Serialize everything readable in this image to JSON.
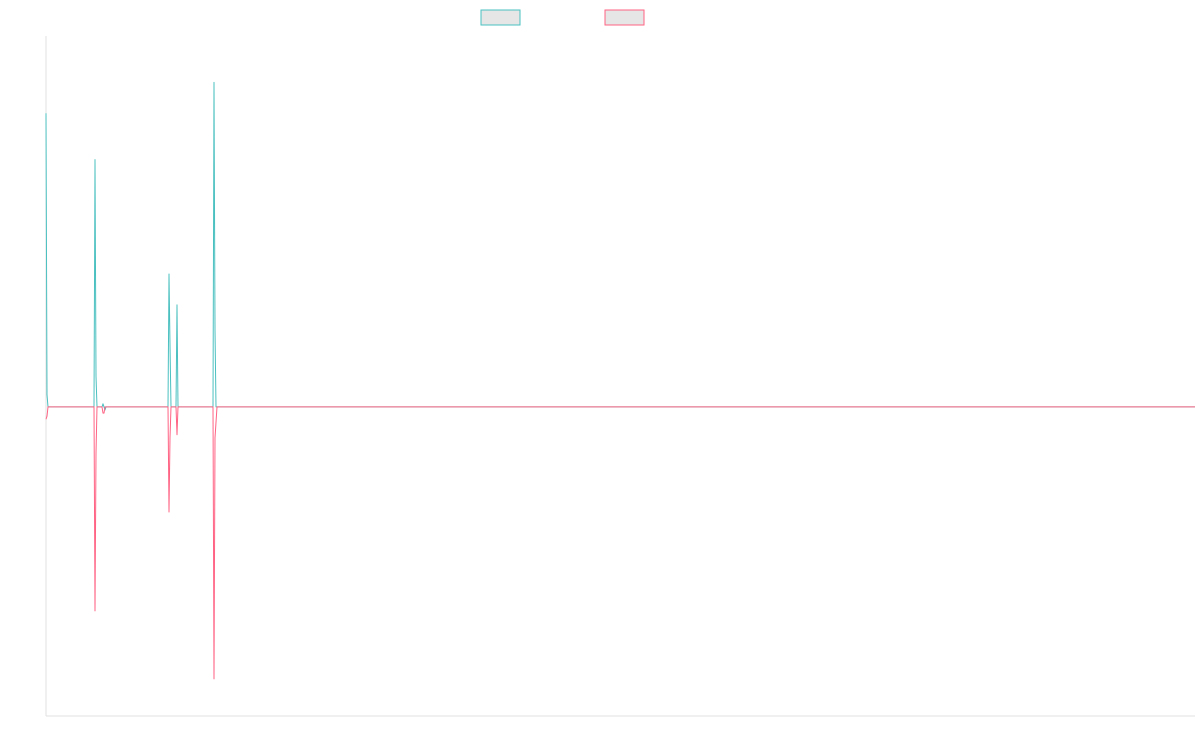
{
  "chart_data": {
    "type": "line",
    "title": "",
    "xlabel": "",
    "ylabel": "",
    "ylim": [
      -100,
      120
    ],
    "legend_position": "top-center",
    "grid": false,
    "x": [
      0,
      1,
      2,
      3,
      4,
      5,
      6,
      7,
      8,
      9,
      10,
      11,
      12,
      13,
      14,
      15,
      16,
      17,
      18,
      19,
      20,
      21,
      22,
      23,
      24,
      25,
      26,
      27,
      28,
      29,
      30,
      31,
      32,
      33,
      34,
      35,
      36,
      37,
      38,
      39,
      40,
      41,
      42,
      43,
      44,
      45,
      46,
      47,
      48,
      49,
      50,
      51,
      52,
      53,
      54,
      55,
      56,
      57,
      58,
      59,
      60,
      61,
      62,
      63,
      64,
      65,
      66,
      67,
      68,
      69,
      70,
      71,
      72,
      73,
      74,
      75,
      76,
      77,
      78,
      79,
      80,
      81,
      82,
      83,
      84,
      85,
      86,
      87,
      88,
      89,
      90,
      91,
      92,
      93,
      94,
      95,
      96,
      97,
      98,
      99,
      100,
      101,
      102,
      103,
      104,
      105,
      106,
      107,
      108,
      109,
      110,
      111,
      112,
      113,
      114,
      115,
      116,
      117,
      118,
      119,
      120,
      121,
      122,
      123,
      124,
      125,
      126,
      127,
      128,
      129,
      130,
      131,
      132,
      133,
      134,
      135,
      136,
      137,
      138,
      139,
      140,
      141,
      142,
      143,
      144,
      145,
      146,
      147,
      148,
      149,
      150,
      151,
      152,
      153,
      154,
      155,
      156,
      157,
      158,
      159,
      160,
      161,
      162,
      163,
      164,
      165,
      166,
      167,
      168,
      169,
      170,
      171,
      172,
      173,
      174,
      175,
      176,
      177,
      178,
      179,
      180,
      181,
      182,
      183,
      184,
      185,
      186,
      187,
      188,
      189,
      190,
      191,
      192,
      193,
      194,
      195,
      196,
      197,
      198,
      199,
      200,
      201,
      202,
      203,
      204,
      205,
      206,
      207,
      208,
      209,
      210,
      211,
      212,
      213,
      214,
      215,
      216,
      217,
      218,
      219,
      220,
      221,
      222,
      223,
      224,
      225,
      226,
      227,
      228,
      229,
      230,
      231,
      232,
      233,
      234,
      235,
      236,
      237,
      238,
      239,
      240,
      241,
      242,
      243,
      244,
      245,
      246,
      247,
      248,
      249,
      250,
      251,
      252,
      253,
      254,
      255,
      256,
      257,
      258,
      259,
      260,
      261,
      262,
      263,
      264,
      265,
      266,
      267,
      268,
      269,
      270,
      271,
      272,
      273,
      274,
      275,
      276,
      277,
      278,
      279,
      280,
      281,
      282,
      283,
      284,
      285,
      286,
      287,
      288,
      289,
      290,
      291,
      292,
      293,
      294,
      295,
      296,
      297,
      298,
      299,
      300,
      301,
      302,
      303,
      304,
      305,
      306,
      307,
      308,
      309,
      310,
      311,
      312,
      313,
      314,
      315,
      316,
      317,
      318,
      319,
      320,
      321,
      322,
      323,
      324,
      325,
      326,
      327,
      328,
      329,
      330,
      331,
      332,
      333,
      334,
      335,
      336,
      337,
      338,
      339,
      340,
      341,
      342,
      343,
      344,
      345,
      346,
      347,
      348,
      349,
      350,
      351,
      352,
      353,
      354,
      355,
      356,
      357,
      358,
      359,
      360,
      361,
      362,
      363,
      364,
      365,
      366,
      367,
      368,
      369,
      370,
      371,
      372,
      373,
      374,
      375,
      376,
      377,
      378,
      379,
      380,
      381,
      382,
      383,
      384,
      385,
      386,
      387,
      388,
      389,
      390,
      391,
      392,
      393,
      394,
      395,
      396,
      397,
      398,
      399,
      400,
      401,
      402,
      403,
      404,
      405,
      406,
      407,
      408,
      409,
      410,
      411,
      412,
      413,
      414,
      415,
      416,
      417,
      418,
      419,
      420,
      421,
      422,
      423,
      424,
      425,
      426,
      427,
      428,
      429,
      430,
      431,
      432,
      433,
      434,
      435,
      436,
      437,
      438,
      439,
      440,
      441,
      442,
      443,
      444,
      445,
      446,
      447,
      448,
      449,
      450,
      451,
      452,
      453,
      454,
      455,
      456,
      457,
      458,
      459,
      460,
      461,
      462,
      463,
      464,
      465,
      466,
      467,
      468,
      469,
      470,
      471,
      472,
      473,
      474,
      475,
      476,
      477,
      478,
      479,
      480,
      481,
      482,
      483,
      484,
      485,
      486,
      487,
      488,
      489,
      490,
      491,
      492,
      493,
      494,
      495,
      496,
      497,
      498,
      499,
      500,
      501,
      502,
      503,
      504,
      505,
      506,
      507,
      508,
      509,
      510,
      511,
      512,
      513,
      514,
      515,
      516,
      517,
      518,
      519,
      520,
      521,
      522,
      523,
      524,
      525,
      526,
      527,
      528,
      529,
      530,
      531,
      532,
      533,
      534,
      535,
      536,
      537,
      538,
      539,
      540,
      541,
      542,
      543,
      544,
      545,
      546,
      547,
      548,
      549,
      550,
      551,
      552,
      553,
      554,
      555,
      556,
      557,
      558,
      559,
      560,
      561,
      562,
      563,
      564,
      565,
      566,
      567,
      568,
      569,
      570,
      571,
      572,
      573,
      574,
      575,
      576,
      577,
      578,
      579,
      580,
      581,
      582,
      583,
      584,
      585,
      586,
      587,
      588,
      589,
      590,
      591,
      592,
      593,
      594,
      595,
      596,
      597,
      598,
      599,
      600,
      601,
      602,
      603,
      604,
      605,
      606,
      607,
      608,
      609,
      610,
      611,
      612,
      613,
      614,
      615,
      616,
      617,
      618,
      619,
      620,
      621,
      622,
      623,
      624,
      625,
      626,
      627,
      628,
      629,
      630,
      631,
      632,
      633,
      634,
      635,
      636,
      637,
      638,
      639,
      640,
      641,
      642,
      643,
      644,
      645,
      646,
      647,
      648,
      649,
      650,
      651,
      652,
      653,
      654,
      655,
      656,
      657,
      658,
      659,
      660,
      661,
      662,
      663,
      664,
      665,
      666,
      667,
      668,
      669,
      670,
      671,
      672,
      673,
      674,
      675,
      676,
      677,
      678,
      679,
      680,
      681,
      682,
      683,
      684,
      685,
      686,
      687,
      688,
      689,
      690,
      691,
      692,
      693,
      694,
      695,
      696,
      697,
      698,
      699,
      700,
      701,
      702,
      703,
      704,
      705,
      706,
      707,
      708,
      709,
      710,
      711,
      712,
      713,
      714,
      715,
      716,
      717,
      718,
      719,
      720,
      721,
      722,
      723,
      724,
      725,
      726,
      727,
      728,
      729,
      730,
      731,
      732,
      733,
      734,
      735,
      736,
      737,
      738,
      739,
      740,
      741,
      742,
      743,
      744,
      745,
      746,
      747,
      748,
      749,
      750,
      751,
      752,
      753,
      754,
      755,
      756,
      757,
      758,
      759,
      760,
      761,
      762,
      763,
      764,
      765,
      766,
      767,
      768,
      769,
      770,
      771,
      772,
      773,
      774,
      775,
      776,
      777,
      778,
      779,
      780,
      781,
      782,
      783,
      784,
      785,
      786,
      787,
      788,
      789,
      790,
      791,
      792,
      793,
      794,
      795,
      796,
      797,
      798,
      799,
      800,
      801,
      802,
      803,
      804,
      805,
      806,
      807,
      808,
      809,
      810,
      811,
      812,
      813,
      814,
      815,
      816,
      817,
      818,
      819,
      820,
      821,
      822,
      823,
      824,
      825,
      826,
      827,
      828,
      829,
      830,
      831,
      832,
      833,
      834,
      835,
      836,
      837,
      838,
      839,
      840,
      841,
      842,
      843,
      844,
      845,
      846,
      847,
      848,
      849,
      850,
      851,
      852,
      853,
      854,
      855,
      856,
      857,
      858,
      859,
      860,
      861,
      862,
      863,
      864,
      865,
      866,
      867,
      868,
      869,
      870,
      871,
      872,
      873,
      874,
      875,
      876,
      877,
      878,
      879,
      880,
      881,
      882,
      883,
      884,
      885,
      886,
      887,
      888,
      889,
      890,
      891,
      892,
      893,
      894,
      895,
      896,
      897,
      898,
      899,
      900,
      901,
      902,
      903,
      904,
      905,
      906,
      907,
      908,
      909,
      910,
      911,
      912,
      913,
      914,
      915,
      916,
      917,
      918,
      919,
      920,
      921,
      922,
      923,
      924,
      925,
      926,
      927,
      928,
      929,
      930,
      931,
      932,
      933,
      934,
      935,
      936,
      937,
      938,
      939,
      940,
      941,
      942,
      943,
      944,
      945,
      946,
      947,
      948,
      949,
      950,
      951,
      952,
      953,
      954,
      955,
      956,
      957,
      958,
      959,
      960,
      961,
      962,
      963,
      964,
      965,
      966,
      967,
      968,
      969,
      970,
      971,
      972,
      973,
      974,
      975,
      976,
      977,
      978,
      979,
      980,
      981,
      982,
      983,
      984,
      985,
      986,
      987,
      988,
      989,
      990,
      991,
      992,
      993,
      994,
      995,
      996,
      997,
      998,
      999,
      1000,
      1001,
      1002,
      1003,
      1004,
      1005,
      1006,
      1007,
      1008,
      1009,
      1010,
      1011,
      1012,
      1013,
      1014,
      1015,
      1016,
      1017,
      1018,
      1019,
      1020,
      1021,
      1022,
      1023,
      1024,
      1025,
      1026,
      1027,
      1028,
      1029,
      1030,
      1031,
      1032,
      1033,
      1034,
      1035,
      1036,
      1037,
      1038,
      1039,
      1040,
      1041,
      1042,
      1043,
      1044,
      1045,
      1046,
      1047,
      1048,
      1049,
      1050,
      1051,
      1052,
      1053,
      1054,
      1055,
      1056,
      1057,
      1058,
      1059,
      1060,
      1061,
      1062,
      1063,
      1064,
      1065,
      1066,
      1067,
      1068,
      1069,
      1070,
      1071,
      1072,
      1073,
      1074,
      1075,
      1076,
      1077,
      1078,
      1079,
      1080,
      1081,
      1082,
      1083,
      1084,
      1085,
      1086,
      1087,
      1088,
      1089,
      1090,
      1091,
      1092,
      1093,
      1094,
      1095,
      1096,
      1097,
      1098,
      1099,
      1100,
      1101,
      1102,
      1103,
      1104,
      1105,
      1106,
      1107,
      1108,
      1109,
      1110,
      1111,
      1112,
      1113,
      1114,
      1115,
      1116,
      1117,
      1118,
      1119,
      1120,
      1121,
      1122,
      1123,
      1124,
      1125,
      1126,
      1127,
      1128,
      1129,
      1130,
      1131,
      1132,
      1133,
      1134,
      1135,
      1136,
      1137,
      1138,
      1139,
      1140,
      1141,
      1142,
      1143,
      1144,
      1145,
      1146,
      1147,
      1148,
      1149
    ],
    "series": [
      {
        "color": "#4bc0c0",
        "legend_fill": "#e6e6e6",
        "points": [
          [
            0,
            95
          ],
          [
            1,
            4
          ],
          [
            2,
            0
          ],
          [
            3,
            0
          ],
          [
            4,
            0
          ],
          [
            5,
            0
          ],
          [
            44,
            0
          ],
          [
            45,
            0
          ],
          [
            46,
            0
          ],
          [
            47,
            0
          ],
          [
            48,
            0
          ],
          [
            49,
            80
          ],
          [
            50,
            10
          ],
          [
            51,
            0
          ],
          [
            52,
            0
          ],
          [
            53,
            0
          ],
          [
            54,
            0
          ],
          [
            55,
            0
          ],
          [
            56,
            0
          ],
          [
            57,
            1
          ],
          [
            58,
            0
          ],
          [
            59,
            -1
          ],
          [
            60,
            0
          ],
          [
            61,
            0
          ],
          [
            76,
            0
          ],
          [
            77,
            0
          ],
          [
            78,
            0
          ],
          [
            79,
            0
          ],
          [
            120,
            0
          ],
          [
            121,
            0
          ],
          [
            122,
            0
          ],
          [
            123,
            43
          ],
          [
            124,
            20
          ],
          [
            125,
            0
          ],
          [
            126,
            0
          ],
          [
            127,
            0
          ],
          [
            128,
            0
          ],
          [
            129,
            0
          ],
          [
            130,
            0
          ],
          [
            131,
            33
          ],
          [
            132,
            0
          ],
          [
            133,
            0
          ],
          [
            147,
            0
          ],
          [
            148,
            0
          ],
          [
            149,
            0
          ],
          [
            164,
            0
          ],
          [
            165,
            0
          ],
          [
            166,
            0
          ],
          [
            167,
            0
          ],
          [
            168,
            105
          ],
          [
            169,
            25
          ],
          [
            170,
            0
          ],
          [
            171,
            0
          ],
          [
            172,
            0
          ],
          [
            173,
            0
          ],
          [
            1149,
            0
          ]
        ]
      },
      {
        "color": "#ff6384",
        "legend_fill": "#e6e6e6",
        "points": [
          [
            0,
            -4
          ],
          [
            1,
            -3
          ],
          [
            2,
            0
          ],
          [
            3,
            0
          ],
          [
            4,
            0
          ],
          [
            5,
            0
          ],
          [
            44,
            0
          ],
          [
            45,
            0
          ],
          [
            46,
            0
          ],
          [
            47,
            0
          ],
          [
            48,
            0
          ],
          [
            49,
            -66
          ],
          [
            50,
            -15
          ],
          [
            51,
            0
          ],
          [
            52,
            0
          ],
          [
            53,
            0
          ],
          [
            54,
            0
          ],
          [
            55,
            0
          ],
          [
            56,
            0
          ],
          [
            57,
            -2
          ],
          [
            58,
            -2
          ],
          [
            59,
            0
          ],
          [
            60,
            0
          ],
          [
            61,
            0
          ],
          [
            120,
            0
          ],
          [
            121,
            0
          ],
          [
            122,
            0
          ],
          [
            123,
            -34
          ],
          [
            124,
            -10
          ],
          [
            125,
            0
          ],
          [
            126,
            0
          ],
          [
            127,
            0
          ],
          [
            128,
            0
          ],
          [
            129,
            0
          ],
          [
            130,
            0
          ],
          [
            131,
            -9
          ],
          [
            132,
            0
          ],
          [
            133,
            0
          ],
          [
            164,
            0
          ],
          [
            165,
            0
          ],
          [
            166,
            0
          ],
          [
            167,
            0
          ],
          [
            168,
            -88
          ],
          [
            169,
            -10
          ],
          [
            170,
            -5
          ],
          [
            171,
            0
          ],
          [
            172,
            0
          ],
          [
            173,
            0
          ],
          [
            1149,
            0
          ]
        ]
      }
    ]
  }
}
